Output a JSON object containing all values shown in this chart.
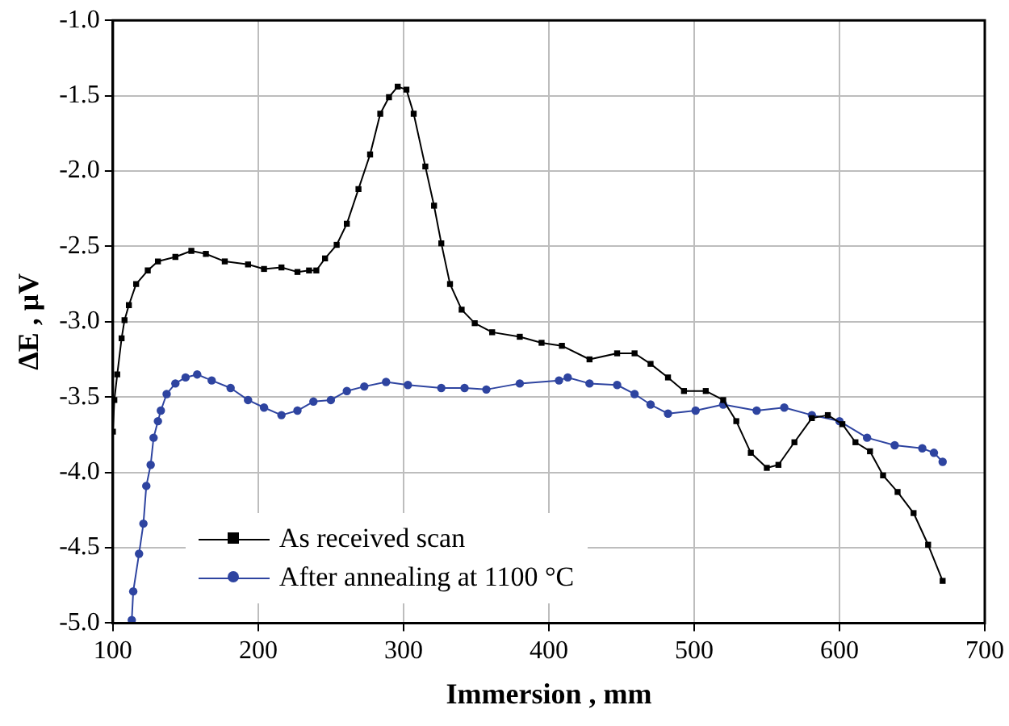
{
  "chart_data": {
    "type": "line",
    "xlabel": "Immersion , mm",
    "ylabel": "ΔE , μV",
    "xlim": [
      100,
      700
    ],
    "xticks": [
      100,
      200,
      300,
      400,
      500,
      600,
      700
    ],
    "ylim": [
      -5.0,
      -1.0
    ],
    "yticks": [
      {
        "value": -5,
        "label": "-5.0"
      },
      {
        "value": -4.5,
        "label": "-4.5"
      },
      {
        "value": -4,
        "label": "-4.0"
      },
      {
        "value": -3.5,
        "label": "-3.5"
      },
      {
        "value": -3,
        "label": "-3.0"
      },
      {
        "value": -2.5,
        "label": "-2.5"
      },
      {
        "value": -2,
        "label": "-2.0"
      },
      {
        "value": -1.5,
        "label": "-1.5"
      },
      {
        "value": -1,
        "label": "-1.0"
      }
    ],
    "grid": true,
    "legend": "bottom left",
    "line_style": "solid",
    "series": [
      {
        "name": "As received scan",
        "color": "#000000",
        "marker": "square",
        "x": [
          100,
          101,
          103,
          106,
          108,
          111,
          116,
          124,
          131,
          143,
          154,
          164,
          177,
          193,
          204,
          216,
          227,
          235,
          240,
          246,
          254,
          261,
          269,
          277,
          284,
          290,
          296,
          302,
          307,
          315,
          321,
          326,
          332,
          340,
          349,
          361,
          380,
          395,
          409,
          428,
          447,
          459,
          470,
          482,
          493,
          508,
          520,
          529,
          539,
          550,
          558,
          569,
          581,
          592,
          602,
          611,
          621,
          630,
          640,
          651,
          661,
          671
        ],
        "values": [
          -3.73,
          -3.52,
          -3.35,
          -3.11,
          -2.99,
          -2.89,
          -2.75,
          -2.66,
          -2.6,
          -2.57,
          -2.53,
          -2.55,
          -2.6,
          -2.62,
          -2.65,
          -2.64,
          -2.67,
          -2.66,
          -2.66,
          -2.58,
          -2.49,
          -2.35,
          -2.12,
          -1.89,
          -1.62,
          -1.51,
          -1.44,
          -1.46,
          -1.62,
          -1.97,
          -2.23,
          -2.48,
          -2.75,
          -2.92,
          -3.01,
          -3.07,
          -3.1,
          -3.14,
          -3.16,
          -3.25,
          -3.21,
          -3.21,
          -3.28,
          -3.37,
          -3.46,
          -3.46,
          -3.52,
          -3.66,
          -3.87,
          -3.97,
          -3.95,
          -3.8,
          -3.64,
          -3.62,
          -3.68,
          -3.8,
          -3.86,
          -4.02,
          -4.13,
          -4.27,
          -4.48,
          -4.72
        ]
      },
      {
        "name": "After annealing at 1100 °C",
        "color": "#2e44a0",
        "marker": "circle",
        "x": [
          113,
          114,
          118,
          121,
          123,
          126,
          128,
          131,
          133,
          137,
          143,
          150,
          158,
          168,
          181,
          193,
          204,
          216,
          227,
          238,
          250,
          261,
          273,
          288,
          303,
          326,
          342,
          357,
          380,
          407,
          413,
          428,
          447,
          459,
          470,
          482,
          501,
          520,
          543,
          562,
          581,
          600,
          619,
          638,
          657,
          665,
          671
        ],
        "values": [
          -4.98,
          -4.79,
          -4.54,
          -4.34,
          -4.09,
          -3.95,
          -3.77,
          -3.66,
          -3.59,
          -3.48,
          -3.41,
          -3.37,
          -3.35,
          -3.39,
          -3.44,
          -3.52,
          -3.57,
          -3.62,
          -3.59,
          -3.53,
          -3.52,
          -3.46,
          -3.43,
          -3.4,
          -3.42,
          -3.44,
          -3.44,
          -3.45,
          -3.41,
          -3.39,
          -3.37,
          -3.41,
          -3.42,
          -3.48,
          -3.55,
          -3.61,
          -3.59,
          -3.55,
          -3.59,
          -3.57,
          -3.62,
          -3.66,
          -3.77,
          -3.82,
          -3.84,
          -3.87,
          -3.93
        ]
      }
    ]
  }
}
